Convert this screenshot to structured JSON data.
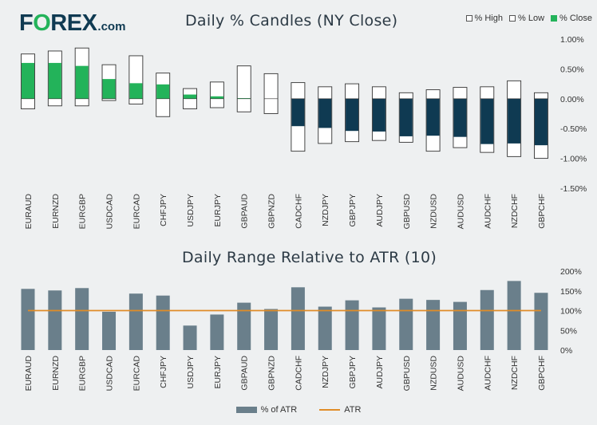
{
  "brand": {
    "logo_pre": "F",
    "logo_o": "O",
    "logo_post": "REX",
    "logo_suffix": ".com"
  },
  "legend": {
    "high": "% High",
    "low": "% Low",
    "close": "% Close",
    "pct_atr": "% of ATR",
    "atr": "ATR"
  },
  "colors": {
    "green": "#23b35a",
    "navy": "#0f3a52",
    "atr_bar": "#6a7f8b",
    "atr_line": "#e08c27"
  },
  "chart_data": [
    {
      "type": "bar",
      "title": "Daily % Candles (NY Close)",
      "categories": [
        "EURAUD",
        "EURNZD",
        "EURGBP",
        "USDCAD",
        "EURCAD",
        "CHFJPY",
        "USDJPY",
        "EURJPY",
        "GBPAUD",
        "GBPNZD",
        "CADCHF",
        "NZDJPY",
        "GBPJPY",
        "AUDJPY",
        "GBPUSD",
        "NZDUSD",
        "AUDUSD",
        "AUDCHF",
        "NZDCHF",
        "GBPCHF"
      ],
      "series": [
        {
          "name": "% High",
          "values": [
            0.75,
            0.8,
            0.85,
            0.57,
            0.72,
            0.43,
            0.17,
            0.28,
            0.55,
            0.42,
            0.27,
            0.2,
            0.25,
            0.2,
            0.1,
            0.15,
            0.19,
            0.2,
            0.3,
            0.1
          ]
        },
        {
          "name": "% Low",
          "values": [
            -0.17,
            -0.12,
            -0.12,
            -0.03,
            -0.09,
            -0.3,
            -0.17,
            -0.15,
            -0.22,
            -0.25,
            -0.88,
            -0.75,
            -0.72,
            -0.7,
            -0.73,
            -0.88,
            -0.82,
            -0.9,
            -0.97,
            -1.0
          ]
        },
        {
          "name": "% Close",
          "values": [
            0.6,
            0.6,
            0.55,
            0.33,
            0.26,
            0.24,
            0.07,
            0.04,
            0.01,
            0.0,
            -0.46,
            -0.49,
            -0.54,
            -0.55,
            -0.63,
            -0.62,
            -0.64,
            -0.76,
            -0.75,
            -0.78
          ]
        }
      ],
      "ylim": [
        -1.5,
        1.0
      ],
      "yticks": [
        "1.00%",
        "0.50%",
        "0.00%",
        "-0.50%",
        "-1.00%",
        "-1.50%"
      ],
      "ytick_values": [
        1.0,
        0.5,
        0.0,
        -0.5,
        -1.0,
        -1.5
      ]
    },
    {
      "type": "bar",
      "title": "Daily Range Relative to ATR (10)",
      "categories": [
        "EURAUD",
        "EURNZD",
        "EURGBP",
        "USDCAD",
        "EURCAD",
        "CHFJPY",
        "USDJPY",
        "EURJPY",
        "GBPAUD",
        "GBPNZD",
        "CADCHF",
        "NZDJPY",
        "GBPJPY",
        "AUDJPY",
        "GBPUSD",
        "NZDUSD",
        "AUDUSD",
        "AUDCHF",
        "NZDCHF",
        "GBPCHF"
      ],
      "series": [
        {
          "name": "% of ATR",
          "values": [
            155,
            151,
            157,
            97,
            143,
            138,
            62,
            90,
            120,
            104,
            159,
            110,
            126,
            108,
            130,
            127,
            122,
            152,
            175,
            145
          ]
        },
        {
          "name": "ATR",
          "values": [
            100,
            100,
            100,
            100,
            100,
            100,
            100,
            100,
            100,
            100,
            100,
            100,
            100,
            100,
            100,
            100,
            100,
            100,
            100,
            100
          ]
        }
      ],
      "ylim": [
        0,
        200
      ],
      "yticks": [
        "200%",
        "150%",
        "100%",
        "50%",
        "0%"
      ],
      "ytick_values": [
        200,
        150,
        100,
        50,
        0
      ]
    }
  ]
}
